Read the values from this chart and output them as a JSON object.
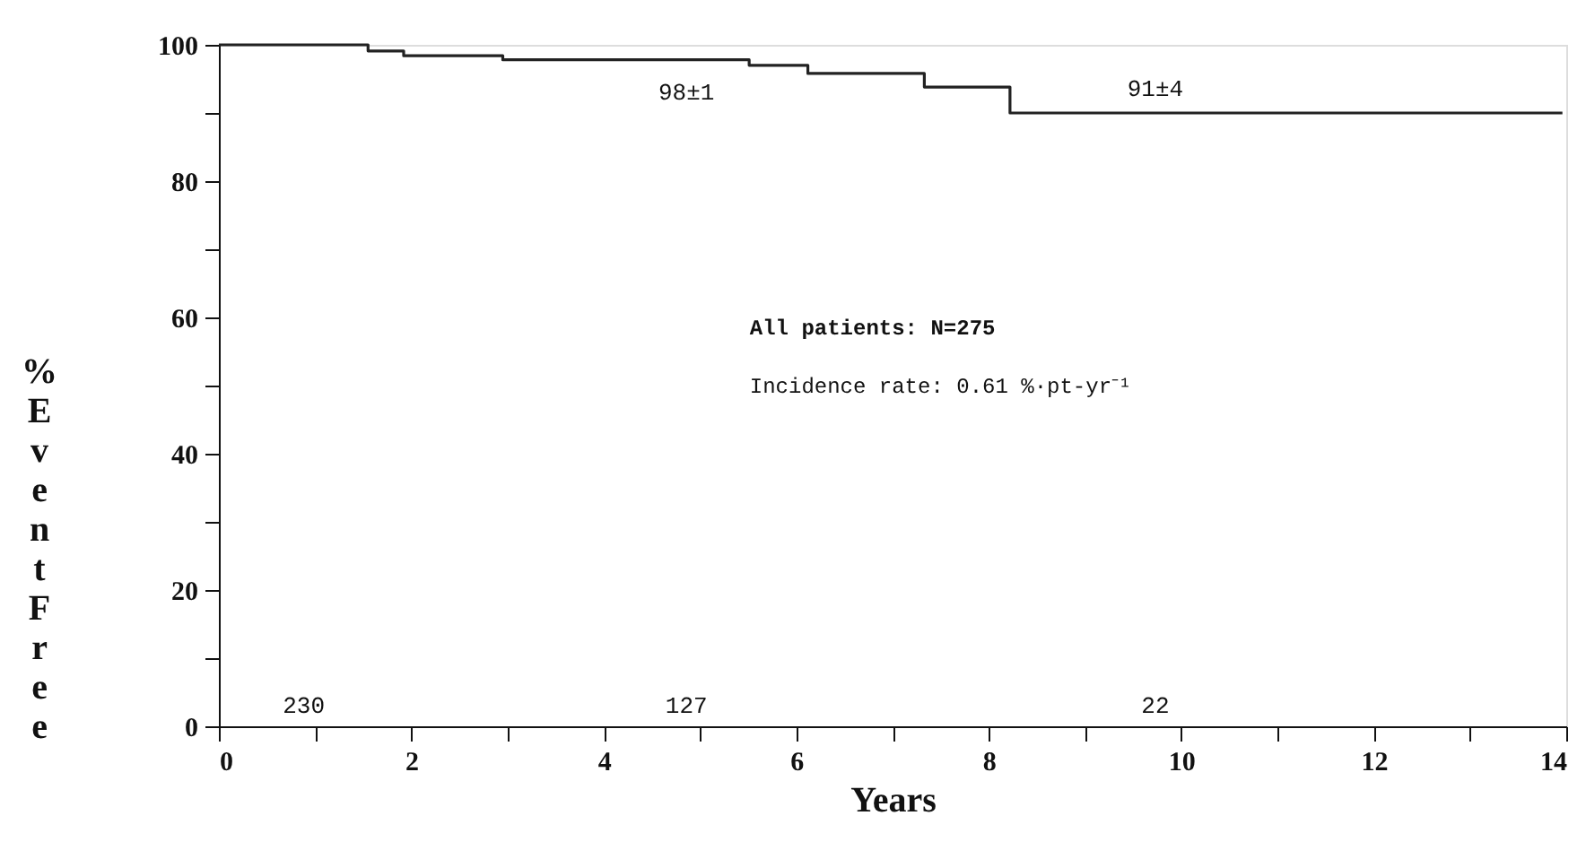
{
  "chart_data": {
    "type": "step",
    "xlabel": "Years",
    "ylabel": "% Event Free",
    "x": [
      0,
      1.55,
      1.92,
      2.95,
      5.51,
      6.12,
      7.33,
      8.22,
      13.96
    ],
    "series": [
      {
        "color": "#222222",
        "values": [
          100,
          99.1,
          98.4,
          97.8,
          97.0,
          95.8,
          93.8,
          90.0,
          90.0
        ]
      }
    ],
    "xlim": [
      0,
      14
    ],
    "ylim": [
      0,
      100
    ],
    "xticks": [
      0,
      {
        "value": 1,
        "label": null
      },
      2,
      {
        "value": 3,
        "label": null
      },
      4,
      {
        "value": 5,
        "label": null
      },
      6,
      {
        "value": 7,
        "label": null
      },
      8,
      {
        "value": 9,
        "label": null
      },
      10,
      {
        "value": 11,
        "label": null
      },
      12,
      {
        "value": 13,
        "label": null
      },
      14
    ],
    "yticks": [
      0,
      {
        "value": 10,
        "label": null
      },
      20,
      {
        "value": 30,
        "label": null
      },
      40,
      {
        "value": 50,
        "label": null
      },
      60,
      {
        "value": 70,
        "label": null
      },
      80,
      {
        "value": 90,
        "label": null
      },
      100
    ],
    "annotations": [
      "98±1",
      "91±4",
      "230",
      "127",
      "22",
      "All patients: N=275",
      "Incidence rate: 0.61 %·pt-yr⁻¹"
    ],
    "grid": false,
    "marker": "none",
    "line_style": "solid"
  }
}
